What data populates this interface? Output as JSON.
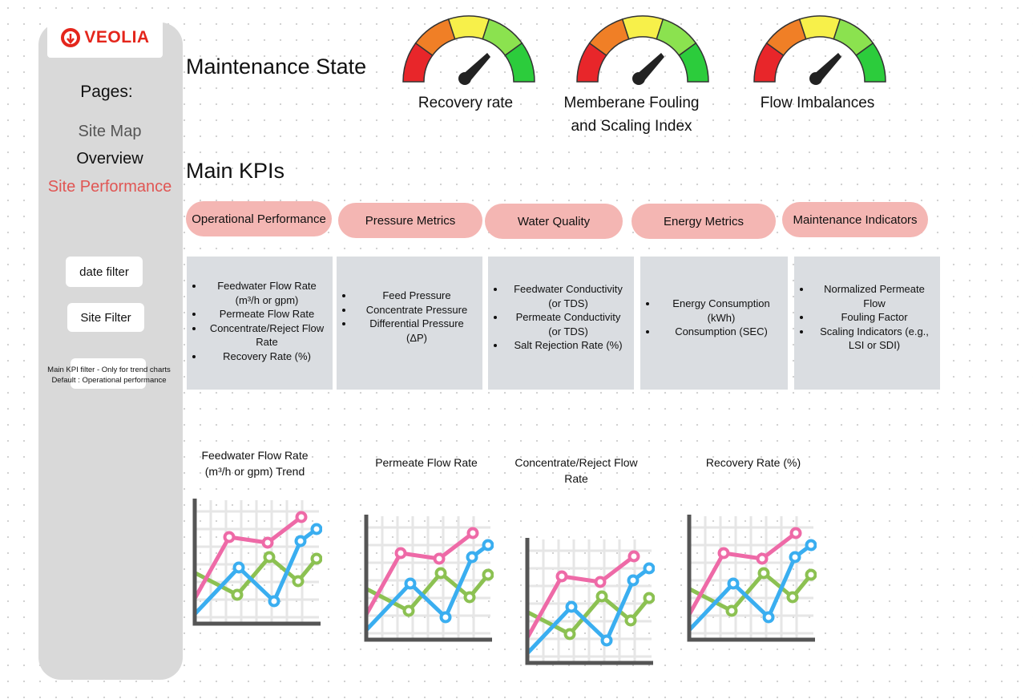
{
  "brand": {
    "name": "VEOLIA",
    "color": "#e4261c"
  },
  "sidebar": {
    "pages_title": "Pages:",
    "nav": [
      {
        "label": "Site Map",
        "active": false
      },
      {
        "label": "Overview",
        "active": false
      },
      {
        "label": "Site Performance",
        "active": true
      }
    ],
    "date_filter_label": "date filter",
    "site_filter_label": "Site Filter",
    "kpi_filter_note_line1": "Main KPI filter - Only for trend  charts",
    "kpi_filter_note_line2": "Default : Operational performance"
  },
  "maintenance": {
    "title": "Maintenance State",
    "gauges": [
      {
        "label_line1": "Recovery rate",
        "label_line2": "",
        "icon": "speedometer-gauge-icon"
      },
      {
        "label_line1": "Memberane Fouling",
        "label_line2": "and Scaling Index",
        "icon": "speedometer-gauge-icon"
      },
      {
        "label_line1": "Flow Imbalances",
        "label_line2": "",
        "icon": "speedometer-gauge-icon"
      }
    ],
    "gauge_colors": [
      "#e8262a",
      "#f07f26",
      "#f7f04a",
      "#8be24f",
      "#2ccc3c"
    ]
  },
  "kpis": {
    "title": "Main KPIs",
    "pill_color": "#f4b6b3",
    "categories": [
      {
        "label": "Operational Performance",
        "items": [
          "Feedwater Flow Rate (m³/h or gpm)",
          "Permeate Flow Rate",
          "Concentrate/Reject Flow Rate",
          "Recovery Rate (%)"
        ]
      },
      {
        "label": "Pressure Metrics",
        "items": [
          "Feed Pressure",
          "Concentrate Pressure",
          "Differential Pressure (ΔP)"
        ]
      },
      {
        "label": "Water Quality",
        "items": [
          "Feedwater Conductivity (or TDS)",
          "Permeate Conductivity (or TDS)",
          "Salt Rejection Rate (%)"
        ]
      },
      {
        "label": "Energy Metrics",
        "items": [
          "Energy Consumption (kWh)",
          "Consumption (SEC)"
        ]
      },
      {
        "label": "Maintenance Indicators",
        "items": [
          "Normalized Permeate Flow",
          "Fouling Factor",
          "Scaling Indicators (e.g., LSI or SDI)"
        ]
      }
    ]
  },
  "trends": [
    {
      "title_line1": "Feedwater Flow Rate",
      "title_line2": "(m³/h or gpm)  Trend",
      "icon": "line-chart-icon"
    },
    {
      "title_line1": "Permeate Flow Rate",
      "title_line2": "",
      "icon": "line-chart-icon"
    },
    {
      "title_line1": "Concentrate/Reject Flow",
      "title_line2": "Rate",
      "icon": "line-chart-icon"
    },
    {
      "title_line1": "Recovery Rate (%)",
      "title_line2": "",
      "icon": "line-chart-icon"
    }
  ],
  "trend_colors": {
    "pink": "#ee6aa7",
    "blue": "#3aaef0",
    "green": "#8cc152",
    "axis": "#555555",
    "grid": "#e6e6e6"
  }
}
